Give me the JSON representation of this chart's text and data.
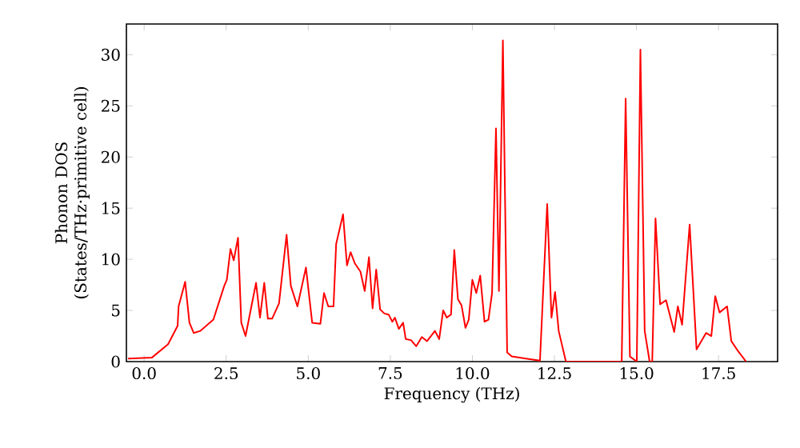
{
  "chart_data": {
    "type": "line",
    "xlabel": "Frequency (THz)",
    "ylabel": "Phonon DOS (States/THz·primitive cell)",
    "xlim": [
      -0.54,
      19.3
    ],
    "ylim": [
      0,
      33
    ],
    "xticks": [
      {
        "value": 0,
        "label": "0.0"
      },
      {
        "value": 2.5,
        "label": "2.5"
      },
      {
        "value": 5,
        "label": "5.0"
      },
      {
        "value": 7.5,
        "label": "7.5"
      },
      {
        "value": 10,
        "label": "10.0"
      },
      {
        "value": 12.5,
        "label": "12.5"
      },
      {
        "value": 15,
        "label": "15.0"
      },
      {
        "value": 17.5,
        "label": "17.5"
      }
    ],
    "yticks": [
      0,
      5,
      10,
      15,
      20,
      25,
      30
    ],
    "grid": false,
    "marker": "none",
    "line_style": "solid",
    "series": [
      {
        "color": "#ff0000",
        "x": [
          -0.49,
          0.24,
          0.73,
          1.02,
          1.05,
          1.25,
          1.38,
          1.51,
          1.71,
          2.11,
          2.44,
          2.52,
          2.63,
          2.73,
          2.86,
          2.96,
          3.09,
          3.41,
          3.53,
          3.66,
          3.77,
          3.9,
          4.11,
          4.34,
          4.47,
          4.67,
          4.93,
          5.12,
          5.37,
          5.48,
          5.61,
          5.77,
          5.85,
          6.06,
          6.18,
          6.29,
          6.42,
          6.59,
          6.72,
          6.85,
          6.96,
          7.07,
          7.19,
          7.32,
          7.45,
          7.56,
          7.64,
          7.76,
          7.89,
          7.97,
          8.13,
          8.29,
          8.46,
          8.62,
          8.86,
          8.99,
          9.11,
          9.22,
          9.35,
          9.45,
          9.56,
          9.67,
          9.79,
          9.89,
          10.0,
          10.12,
          10.24,
          10.37,
          10.49,
          10.6,
          10.72,
          10.81,
          10.93,
          11.06,
          11.2,
          11.63,
          12.06,
          12.28,
          12.41,
          12.52,
          12.63,
          12.85,
          14.55,
          14.67,
          14.8,
          15.01,
          15.12,
          15.25,
          15.4,
          15.48,
          15.58,
          15.72,
          15.9,
          16.15,
          16.26,
          16.39,
          16.62,
          16.83,
          17.12,
          17.28,
          17.4,
          17.53,
          17.76,
          17.89,
          18.1,
          18.34
        ],
        "values": [
          0.3,
          0.4,
          1.7,
          3.5,
          5.4,
          7.8,
          3.8,
          2.8,
          3.0,
          4.1,
          7.4,
          8.0,
          11.0,
          9.9,
          12.1,
          3.8,
          2.5,
          7.7,
          4.3,
          7.7,
          4.2,
          4.2,
          5.7,
          12.4,
          7.4,
          5.4,
          9.2,
          3.8,
          3.7,
          6.7,
          5.4,
          5.4,
          11.5,
          14.4,
          9.4,
          10.7,
          9.6,
          8.8,
          6.9,
          10.2,
          5.2,
          9.0,
          5.1,
          4.7,
          4.6,
          3.9,
          4.3,
          3.2,
          3.8,
          2.2,
          2.1,
          1.5,
          2.4,
          2.0,
          3.0,
          2.2,
          5.0,
          4.3,
          4.6,
          10.9,
          6.1,
          5.5,
          3.3,
          4.1,
          8.0,
          6.7,
          8.4,
          3.9,
          4.1,
          6.7,
          22.8,
          6.9,
          31.4,
          0.9,
          0.5,
          0.3,
          0.1,
          15.4,
          4.3,
          6.8,
          3.0,
          0,
          0,
          25.7,
          0.5,
          0,
          30.5,
          3.0,
          0,
          0,
          14.0,
          5.6,
          6.0,
          2.9,
          5.4,
          3.6,
          13.4,
          1.2,
          2.8,
          2.5,
          6.4,
          4.8,
          5.4,
          2.0,
          1.0,
          0
        ]
      }
    ]
  }
}
